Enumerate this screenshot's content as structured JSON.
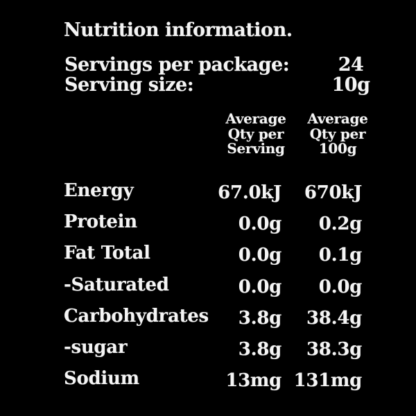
{
  "colors": {
    "background": "#000000",
    "text": "#f4f4f4"
  },
  "title": "Nutrition information.",
  "serving_info": {
    "servings_per_package": {
      "label": "Servings per package:",
      "value": "24"
    },
    "serving_size": {
      "label": "Serving size:",
      "value": "10g"
    }
  },
  "columns": {
    "per_serving": {
      "line1": "Average",
      "line2": "Qty per",
      "line3": "Serving"
    },
    "per_100g": {
      "line1": "Average",
      "line2": "Qty per",
      "line3": "100g"
    }
  },
  "rows": [
    {
      "label": "Energy",
      "per_serving": "67.0kJ",
      "per_100g": "670kJ"
    },
    {
      "label": "Protein",
      "per_serving": "0.0g",
      "per_100g": "0.2g"
    },
    {
      "label": "Fat Total",
      "per_serving": "0.0g",
      "per_100g": "0.1g"
    },
    {
      "label": "-Saturated",
      "per_serving": "0.0g",
      "per_100g": "0.0g"
    },
    {
      "label": "Carbohydrates",
      "per_serving": "3.8g",
      "per_100g": "38.4g"
    },
    {
      "label": "-sugar",
      "per_serving": "3.8g",
      "per_100g": "38.3g"
    },
    {
      "label": "Sodium",
      "per_serving": "13mg",
      "per_100g": "131mg"
    }
  ]
}
